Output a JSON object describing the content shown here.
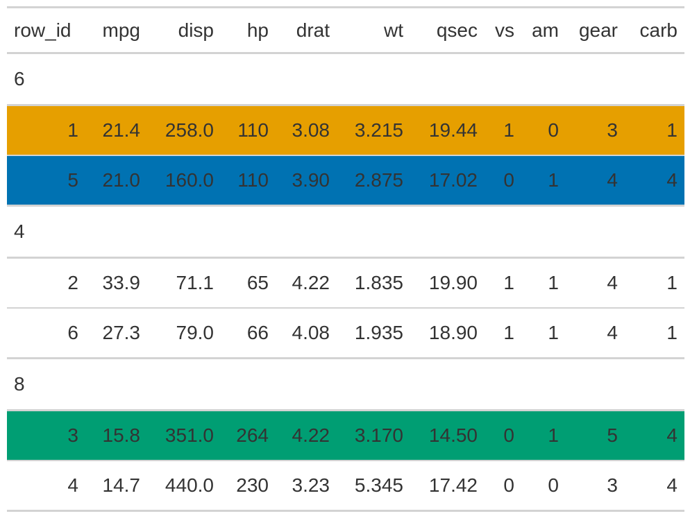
{
  "columns": [
    "row_id",
    "mpg",
    "disp",
    "hp",
    "drat",
    "wt",
    "qsec",
    "vs",
    "am",
    "gear",
    "carb"
  ],
  "colors": {
    "orange": "#E69F00",
    "blue": "#0072B2",
    "green": "#009E73"
  },
  "groups": [
    {
      "label": "6",
      "rows": [
        {
          "values": [
            "1",
            "21.4",
            "258.0",
            "110",
            "3.08",
            "3.215",
            "19.44",
            "1",
            "0",
            "3",
            "1"
          ],
          "fill": "#E69F00"
        },
        {
          "values": [
            "5",
            "21.0",
            "160.0",
            "110",
            "3.90",
            "2.875",
            "17.02",
            "0",
            "1",
            "4",
            "4"
          ],
          "fill": "#0072B2"
        }
      ]
    },
    {
      "label": "4",
      "rows": [
        {
          "values": [
            "2",
            "33.9",
            "71.1",
            "65",
            "4.22",
            "1.835",
            "19.90",
            "1",
            "1",
            "4",
            "1"
          ],
          "fill": ""
        },
        {
          "values": [
            "6",
            "27.3",
            "79.0",
            "66",
            "4.08",
            "1.935",
            "18.90",
            "1",
            "1",
            "4",
            "1"
          ]
        }
      ]
    },
    {
      "label": "8",
      "rows": [
        {
          "values": [
            "3",
            "15.8",
            "351.0",
            "264",
            "4.22",
            "3.170",
            "14.50",
            "0",
            "1",
            "5",
            "4"
          ],
          "fill": "#009E73"
        },
        {
          "values": [
            "4",
            "14.7",
            "440.0",
            "230",
            "3.23",
            "5.345",
            "17.42",
            "0",
            "0",
            "3",
            "4"
          ],
          "fill": ""
        }
      ]
    }
  ]
}
